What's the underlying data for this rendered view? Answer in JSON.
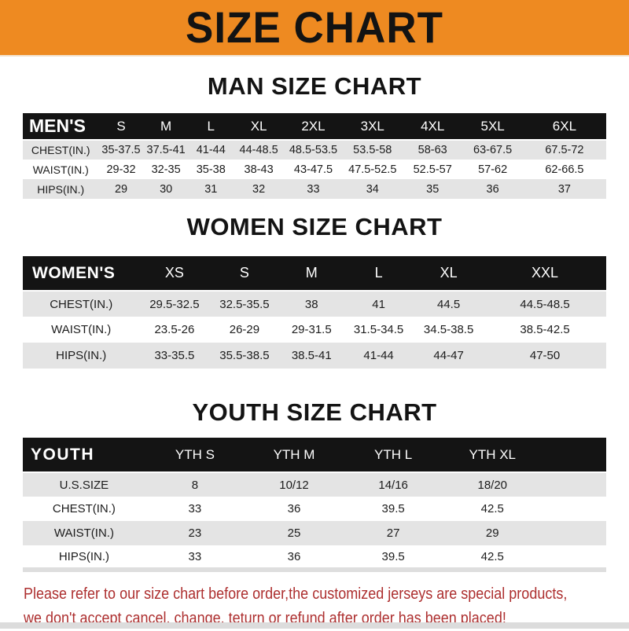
{
  "banner": {
    "title": "SIZE CHART",
    "background_color": "#EE8A21",
    "text_color": "#131313"
  },
  "colors": {
    "table_header_bg": "#141414",
    "table_stripe_gray": "#E4E4E4",
    "note_red": "#AD2F2F"
  },
  "sections": {
    "men": {
      "heading": "MAN SIZE CHART",
      "table": {
        "header": [
          "MEN'S",
          "S",
          "M",
          "L",
          "XL",
          "2XL",
          "3XL",
          "4XL",
          "5XL",
          "6XL"
        ],
        "rows": [
          [
            "CHEST(IN.)",
            "35-37.5",
            "37.5-41",
            "41-44",
            "44-48.5",
            "48.5-53.5",
            "53.5-58",
            "58-63",
            "63-67.5",
            "67.5-72"
          ],
          [
            "WAIST(IN.)",
            "29-32",
            "32-35",
            "35-38",
            "38-43",
            "43-47.5",
            "47.5-52.5",
            "52.5-57",
            "57-62",
            "62-66.5"
          ],
          [
            "HIPS(IN.)",
            "29",
            "30",
            "31",
            "32",
            "33",
            "34",
            "35",
            "36",
            "37"
          ]
        ]
      }
    },
    "women": {
      "heading": "WOMEN SIZE CHART",
      "table": {
        "header": [
          "WOMEN'S",
          "XS",
          "S",
          "M",
          "L",
          "XL",
          "XXL"
        ],
        "rows": [
          [
            "CHEST(IN.)",
            "29.5-32.5",
            "32.5-35.5",
            "38",
            "41",
            "44.5",
            "44.5-48.5"
          ],
          [
            "WAIST(IN.)",
            "23.5-26",
            "26-29",
            "29-31.5",
            "31.5-34.5",
            "34.5-38.5",
            "38.5-42.5"
          ],
          [
            "HIPS(IN.)",
            "33-35.5",
            "35.5-38.5",
            "38.5-41",
            "41-44",
            "44-47",
            "47-50"
          ]
        ]
      }
    },
    "youth": {
      "heading": "YOUTH SIZE CHART",
      "table": {
        "header": [
          "YOUTH",
          "YTH S",
          "YTH M",
          "YTH L",
          "YTH XL"
        ],
        "rows": [
          [
            "U.S.SIZE",
            "8",
            "10/12",
            "14/16",
            "18/20"
          ],
          [
            "CHEST(IN.)",
            "33",
            "36",
            "39.5",
            "42.5"
          ],
          [
            "WAIST(IN.)",
            "23",
            "25",
            "27",
            "29"
          ],
          [
            "HIPS(IN.)",
            "33",
            "36",
            "39.5",
            "42.5"
          ]
        ]
      }
    }
  },
  "footer": {
    "line1": "Please refer to our size chart before order,the customized jerseys are special products,",
    "line2": "we don't accept cancel, change, teturn or refund after order has been placed!"
  }
}
